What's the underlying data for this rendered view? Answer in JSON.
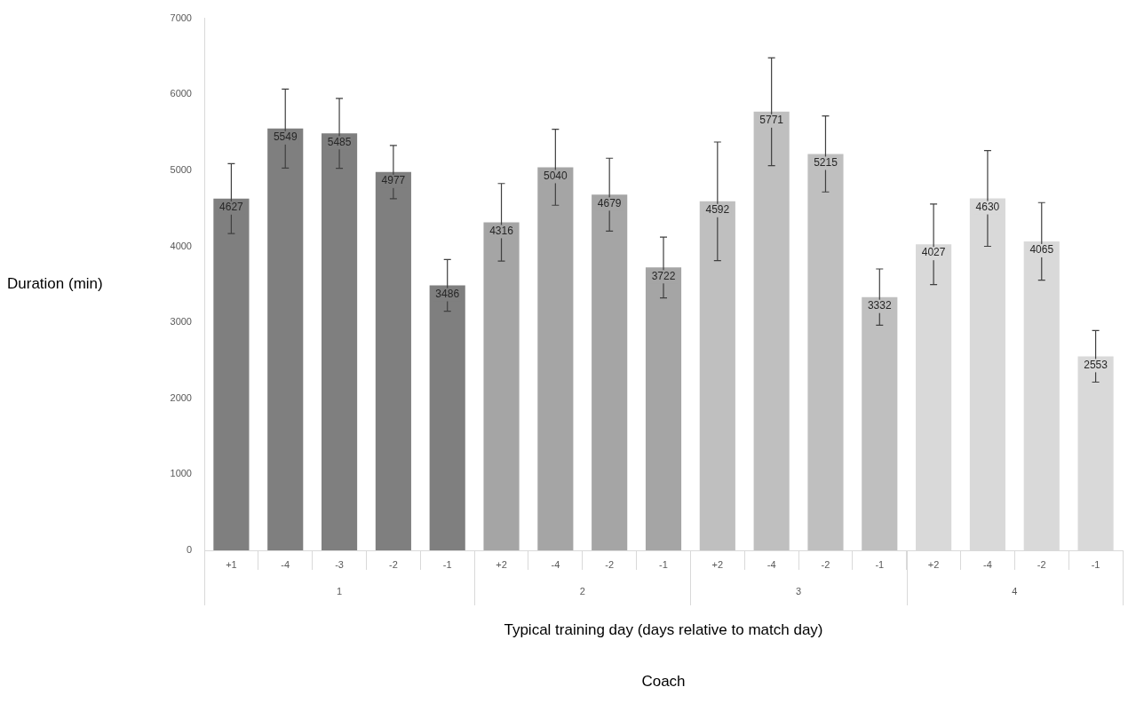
{
  "chart_data": {
    "type": "bar",
    "xlabel": "Typical training day (days relative to match day)",
    "ylabel": "Duration (min)",
    "categories": [
      "+1",
      "-4",
      "-3",
      "-2",
      "-1",
      "+2",
      "-4",
      "-2",
      "-1",
      "+2",
      "-4",
      "-2",
      "-1",
      "+2",
      "-4",
      "-2",
      "-1"
    ],
    "values": [
      4627,
      5549,
      5485,
      4977,
      3486,
      4316,
      5040,
      4679,
      3722,
      4592,
      5771,
      5215,
      3332,
      4027,
      4630,
      4065,
      2553
    ],
    "errors": [
      460,
      520,
      460,
      350,
      340,
      510,
      500,
      480,
      400,
      780,
      710,
      500,
      370,
      530,
      630,
      510,
      340
    ],
    "colors": [
      "#7f7f7f",
      "#7f7f7f",
      "#7f7f7f",
      "#7f7f7f",
      "#7f7f7f",
      "#a5a5a5",
      "#a5a5a5",
      "#a5a5a5",
      "#a5a5a5",
      "#bfbfbf",
      "#bfbfbf",
      "#bfbfbf",
      "#bfbfbf",
      "#d9d9d9",
      "#d9d9d9",
      "#d9d9d9",
      "#d9d9d9"
    ],
    "ylim": [
      0,
      7000
    ],
    "yticks": [
      0,
      1000,
      2000,
      3000,
      4000,
      5000,
      6000,
      7000
    ],
    "data_labels": true,
    "annotations": [
      "1",
      "2",
      "3",
      "4",
      "Coach"
    ]
  }
}
